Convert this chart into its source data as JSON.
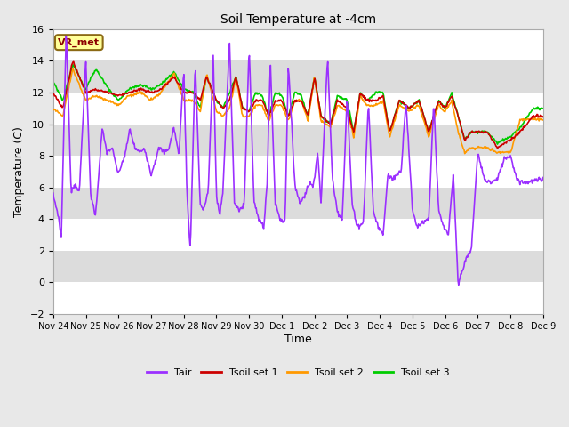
{
  "title": "Soil Temperature at -4cm",
  "xlabel": "Time",
  "ylabel": "Temperature (C)",
  "ylim": [
    -2,
    16
  ],
  "yticks": [
    -2,
    0,
    2,
    4,
    6,
    8,
    10,
    12,
    14,
    16
  ],
  "x_tick_labels": [
    "Nov 24",
    "Nov 25",
    "Nov 26",
    "Nov 27",
    "Nov 28",
    "Nov 29",
    "Nov 30",
    "Dec 1",
    "Dec 2",
    "Dec 3",
    "Dec 4",
    "Dec 5",
    "Dec 6",
    "Dec 7",
    "Dec 8",
    "Dec 9"
  ],
  "bg_color": "#e8e8e8",
  "plot_bg_color": "#ffffff",
  "band_color": "#dcdcdc",
  "annotation_text": "VR_met",
  "annotation_box_color": "#ffff99",
  "annotation_text_color": "#8b0000",
  "annotation_border_color": "#8b6914",
  "legend": {
    "Tair": "#9b30ff",
    "Tsoil set 1": "#cc0000",
    "Tsoil set 2": "#ff9900",
    "Tsoil set 3": "#00cc00"
  },
  "line_width": 1.2,
  "figsize": [
    6.4,
    4.8
  ],
  "dpi": 100
}
